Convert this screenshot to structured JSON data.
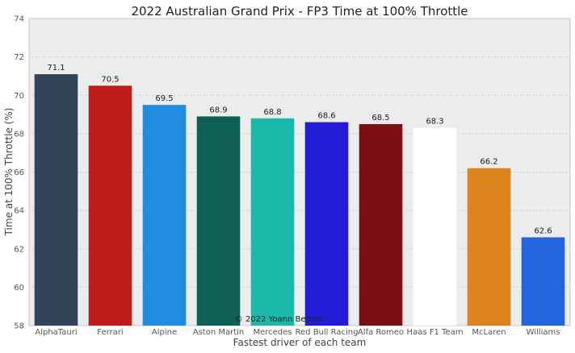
{
  "chart_data": {
    "type": "bar",
    "title": "2022 Australian Grand Prix - FP3 Time at 100% Throttle",
    "xlabel": "Fastest driver of each team",
    "ylabel": "Time at 100% Throttle (%)",
    "categories": [
      "AlphaTauri",
      "Ferrari",
      "Alpine",
      "Aston Martin",
      "Mercedes",
      "Red Bull Racing",
      "Alfa Romeo",
      "Haas F1 Team",
      "McLaren",
      "Williams"
    ],
    "values": [
      71.1,
      70.5,
      69.5,
      68.9,
      68.8,
      68.6,
      68.5,
      68.3,
      66.2,
      62.6
    ],
    "data_labels": [
      "71.1",
      "70.5",
      "69.5",
      "68.9",
      "68.8",
      "68.6",
      "68.5",
      "68.3",
      "66.2",
      "62.6"
    ],
    "colors": [
      "#324558",
      "#c11c1c",
      "#228ce0",
      "#0e5f54",
      "#1ab8a8",
      "#231cd6",
      "#7b1012",
      "#ffffff",
      "#de841e",
      "#2164de"
    ],
    "ylim": [
      58,
      74
    ],
    "yticks": [
      58,
      60,
      62,
      64,
      66,
      68,
      70,
      72,
      74
    ],
    "grid": true,
    "background": "#ececec",
    "annotation": "© 2022 Yoann Bethon"
  }
}
